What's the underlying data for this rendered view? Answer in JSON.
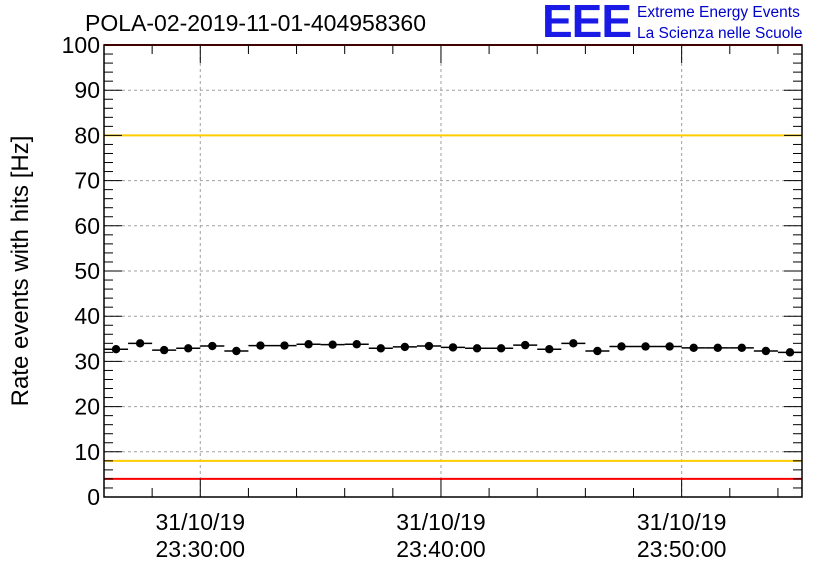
{
  "logo": {
    "mark": "EEE",
    "line1": "Extreme Energy Events",
    "line2": "La Scienza nelle Scuole"
  },
  "chart_data": {
    "type": "scatter",
    "title": "POLA-02-2019-11-01-404958360",
    "ylabel": "Rate events with hits [Hz]",
    "xlabel": "",
    "ylim": [
      0,
      100
    ],
    "y_ticks": [
      0,
      10,
      20,
      30,
      40,
      50,
      60,
      70,
      80,
      90,
      100
    ],
    "x_range": [
      "31/10/19 23:26:00",
      "31/10/19 23:55:00"
    ],
    "x_ticks": [
      {
        "date": "31/10/19",
        "time": "23:30:00"
      },
      {
        "date": "31/10/19",
        "time": "23:40:00"
      },
      {
        "date": "31/10/19",
        "time": "23:50:00"
      }
    ],
    "grid": true,
    "bin_width_seconds": 60,
    "reference_lines": [
      {
        "y": 100,
        "color": "#ff0000"
      },
      {
        "y": 80,
        "color": "#ffcc00"
      },
      {
        "y": 8,
        "color": "#ffcc00"
      },
      {
        "y": 4,
        "color": "#ff0000"
      }
    ],
    "series": [
      {
        "color": "#000000",
        "x": [
          "23:26:30",
          "23:27:30",
          "23:28:30",
          "23:29:30",
          "23:30:30",
          "23:31:30",
          "23:32:30",
          "23:33:30",
          "23:34:30",
          "23:35:30",
          "23:36:30",
          "23:37:30",
          "23:38:30",
          "23:39:30",
          "23:40:30",
          "23:41:30",
          "23:42:30",
          "23:43:30",
          "23:44:30",
          "23:45:30",
          "23:46:30",
          "23:47:30",
          "23:48:30",
          "23:49:30",
          "23:50:30",
          "23:51:30",
          "23:52:30",
          "23:53:30",
          "23:54:30"
        ],
        "y": [
          32.7,
          34.0,
          32.5,
          32.9,
          33.4,
          32.3,
          33.5,
          33.5,
          33.8,
          33.7,
          33.8,
          32.9,
          33.2,
          33.4,
          33.1,
          32.9,
          32.9,
          33.6,
          32.7,
          34.0,
          32.3,
          33.3,
          33.3,
          33.3,
          33.0,
          33.0,
          33.0,
          32.3,
          32.0
        ]
      }
    ]
  }
}
